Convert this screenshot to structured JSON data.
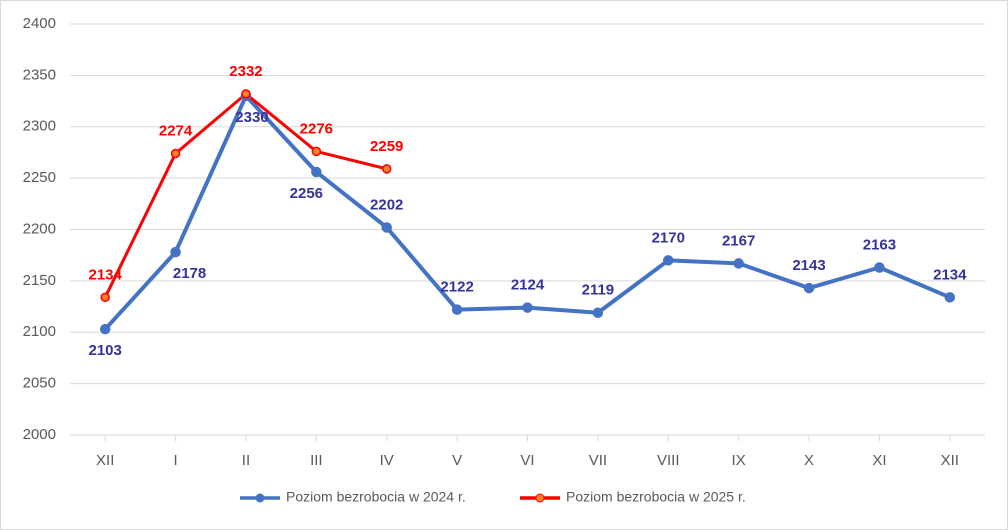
{
  "chart_data": {
    "type": "line",
    "categories": [
      "XII",
      "I",
      "II",
      "III",
      "IV",
      "V",
      "VI",
      "VII",
      "VIII",
      "IX",
      "X",
      "XI",
      "XII"
    ],
    "series": [
      {
        "name": "Poziom bezrobocia w 2024 r.",
        "color": "#4472c4",
        "label_color": "#333399",
        "values": [
          2103,
          2178,
          2330,
          2256,
          2202,
          2122,
          2124,
          2119,
          2170,
          2167,
          2143,
          2163,
          2134
        ]
      },
      {
        "name": "Poziom bezrobocia w 2025 r.",
        "color": "#ff0000",
        "label_color": "#ff0000",
        "values": [
          2134,
          2274,
          2332,
          2276,
          2259,
          null,
          null,
          null,
          null,
          null,
          null,
          null,
          null
        ]
      }
    ],
    "ylim": [
      2000,
      2400
    ],
    "yticks": [
      2000,
      2050,
      2100,
      2150,
      2200,
      2250,
      2300,
      2350,
      2400
    ],
    "grid": true,
    "legend": "bottom"
  }
}
